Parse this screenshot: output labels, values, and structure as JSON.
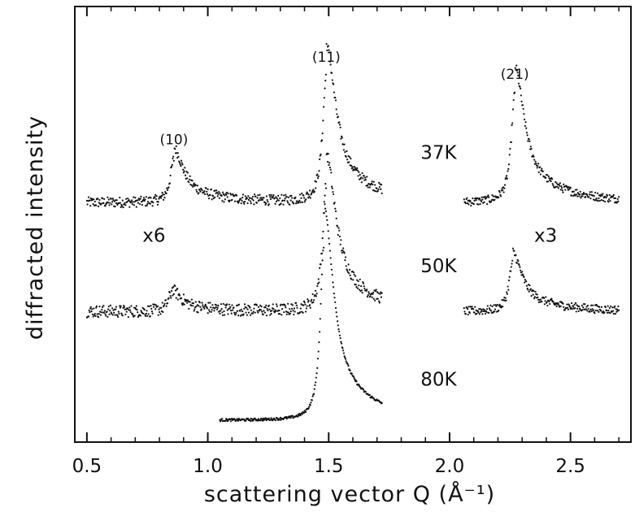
{
  "chart_data": {
    "type": "scatter",
    "xlabel": "scattering vector Q (Å⁻¹)",
    "ylabel": "diffracted intensity",
    "xlim": [
      0.45,
      2.75
    ],
    "ylim": [
      0,
      100
    ],
    "grid": false,
    "x_ticks": [
      0.5,
      1.0,
      1.5,
      2.0,
      2.5
    ],
    "x_tick_labels": [
      "0.5",
      "1.0",
      "1.5",
      "2.0",
      "2.5"
    ],
    "series": [
      {
        "name": "37K",
        "label_at_x": 1.88,
        "label_at_y": 65,
        "segments": [
          {
            "x_range": [
              0.5,
              1.72
            ],
            "baseline": 55,
            "peaks": [
              {
                "x": 0.86,
                "height": 10,
                "label": "(10)"
              },
              {
                "x": 1.49,
                "height": 29,
                "label": "(11)"
              }
            ],
            "noise": 1.2
          },
          {
            "x_range": [
              2.06,
              2.7
            ],
            "baseline": 55,
            "peaks": [
              {
                "x": 2.27,
                "height": 25,
                "label": "(21)"
              }
            ],
            "noise": 1.0
          }
        ]
      },
      {
        "name": "50K",
        "label_at_x": 1.88,
        "label_at_y": 39,
        "segments": [
          {
            "x_range": [
              0.5,
              1.72
            ],
            "baseline": 30,
            "peaks": [
              {
                "x": 0.85,
                "height": 4,
                "label": ""
              },
              {
                "x": 1.49,
                "height": 29,
                "label": ""
              }
            ],
            "noise": 1.4
          },
          {
            "x_range": [
              2.06,
              2.7
            ],
            "baseline": 30,
            "peaks": [
              {
                "x": 2.26,
                "height": 11,
                "label": ""
              }
            ],
            "noise": 1.0
          }
        ]
      },
      {
        "name": "80K",
        "label_at_x": 1.88,
        "label_at_y": 13,
        "segments": [
          {
            "x_range": [
              1.05,
              1.72
            ],
            "baseline": 5,
            "peaks": [
              {
                "x": 1.48,
                "height": 40,
                "label": ""
              }
            ],
            "noise": 0.3
          }
        ]
      }
    ],
    "annotations": [
      {
        "text": "x6",
        "x": 0.73,
        "y": 46
      },
      {
        "text": "x3",
        "x": 2.35,
        "y": 46
      }
    ]
  }
}
